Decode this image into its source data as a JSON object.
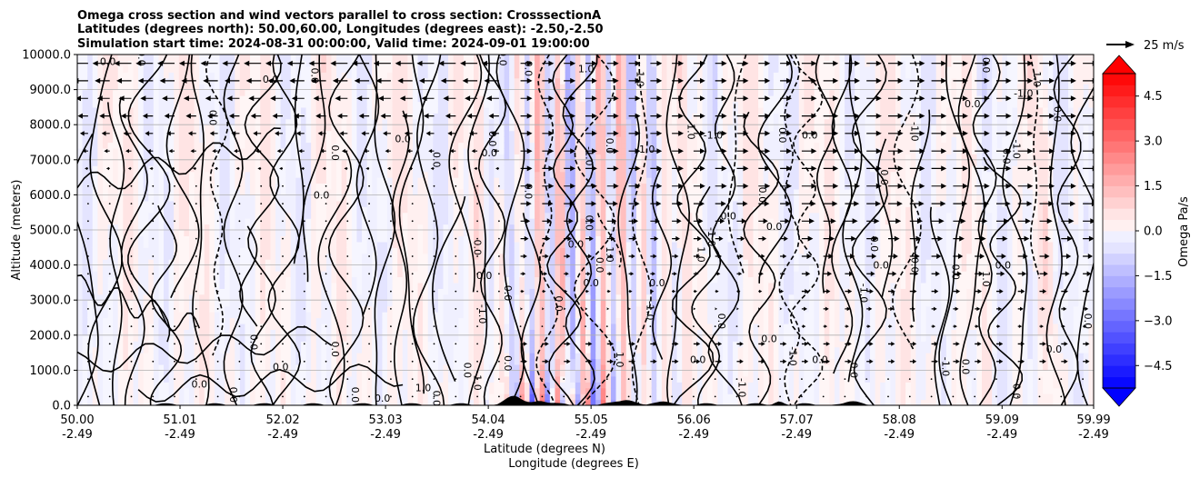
{
  "chart_data": {
    "type": "contour",
    "title_lines": [
      "Omega cross section and wind vectors parallel to cross section: CrosssectionA",
      "Latitudes (degrees north): 50.00,60.00, Longitudes (degrees east): -2.50,-2.50",
      "Simulation start time: 2024-08-31 00:00:00, Valid time: 2024-09-01 19:00:00"
    ],
    "ylabel": "Altitude (meters)",
    "xlabel_lat": "Latitude (degrees N)",
    "xlabel_lon": "Longitude (degrees E)",
    "ylim": [
      0,
      10000
    ],
    "xlim": [
      50.0,
      59.99
    ],
    "y_ticks": [
      "0.0",
      "1000.0",
      "2000.0",
      "3000.0",
      "4000.0",
      "5000.0",
      "6000.0",
      "7000.0",
      "8000.0",
      "9000.0",
      "10000.0"
    ],
    "x_ticks": [
      {
        "lat": "50.00",
        "lon": "-2.49"
      },
      {
        "lat": "51.01",
        "lon": "-2.49"
      },
      {
        "lat": "52.02",
        "lon": "-2.49"
      },
      {
        "lat": "53.03",
        "lon": "-2.49"
      },
      {
        "lat": "54.04",
        "lon": "-2.49"
      },
      {
        "lat": "55.05",
        "lon": "-2.49"
      },
      {
        "lat": "56.06",
        "lon": "-2.49"
      },
      {
        "lat": "57.07",
        "lon": "-2.49"
      },
      {
        "lat": "58.08",
        "lon": "-2.49"
      },
      {
        "lat": "59.09",
        "lon": "-2.49"
      },
      {
        "lat": "59.99",
        "lon": "-2.49"
      }
    ],
    "colorbar": {
      "label": "Omega Pa/s",
      "range": [
        -5.25,
        5.25
      ],
      "ticks": [
        "−4.5",
        "−3.0",
        "−1.5",
        "0.0",
        "1.5",
        "3.0",
        "4.5"
      ],
      "tick_values": [
        -4.5,
        -3.0,
        -1.5,
        0.0,
        1.5,
        3.0,
        4.5
      ],
      "colormap": "bwr",
      "extend": "both"
    },
    "quiver_key": {
      "label": "25 m/s",
      "speed": 25
    },
    "contour_levels": [
      -1.0,
      0.0,
      1.0
    ],
    "contour_labels": [
      {
        "text": "0.0",
        "lat": 50.3,
        "alt": 9700
      },
      {
        "text": "0.0",
        "lat": 50.6,
        "alt": 9900
      },
      {
        "text": "0.0",
        "lat": 51.3,
        "alt": 8200
      },
      {
        "text": "0.0",
        "lat": 51.9,
        "alt": 9200
      },
      {
        "text": "0.0",
        "lat": 52.3,
        "alt": 9400
      },
      {
        "text": "0.0",
        "lat": 52.5,
        "alt": 7200
      },
      {
        "text": "0.0",
        "lat": 53.2,
        "alt": 7500
      },
      {
        "text": "0.0",
        "lat": 53.5,
        "alt": 7000
      },
      {
        "text": "0.0",
        "lat": 54.05,
        "alt": 7600
      },
      {
        "text": "0.0",
        "lat": 54.05,
        "alt": 7100
      },
      {
        "text": "0.0",
        "lat": 54.15,
        "alt": 9900
      },
      {
        "text": "0.0",
        "lat": 54.4,
        "alt": 9600
      },
      {
        "text": "1.0",
        "lat": 55.0,
        "alt": 9500
      },
      {
        "text": "1.0",
        "lat": 55.5,
        "alt": 9300
      },
      {
        "text": "1.0",
        "lat": 56.0,
        "alt": 7800
      },
      {
        "text": "-1.0",
        "lat": 56.25,
        "alt": 7600
      },
      {
        "text": "0.0",
        "lat": 55.2,
        "alt": 7400
      },
      {
        "text": "-1.0",
        "lat": 55.0,
        "alt": 7100
      },
      {
        "text": "1.0",
        "lat": 55.6,
        "alt": 7200
      },
      {
        "text": "0.0",
        "lat": 56.9,
        "alt": 7700
      },
      {
        "text": "-1.0",
        "lat": 58.2,
        "alt": 7800
      },
      {
        "text": "0.0",
        "lat": 57.2,
        "alt": 7600
      },
      {
        "text": "0.0",
        "lat": 57.9,
        "alt": 6500
      },
      {
        "text": "0.0",
        "lat": 58.9,
        "alt": 9700
      },
      {
        "text": "-1.0",
        "lat": 59.3,
        "alt": 8800
      },
      {
        "text": "0.0",
        "lat": 59.6,
        "alt": 8300
      },
      {
        "text": "1.0",
        "lat": 59.4,
        "alt": 9300
      },
      {
        "text": "0.0",
        "lat": 58.8,
        "alt": 8500
      },
      {
        "text": "0.0",
        "lat": 59.1,
        "alt": 7100
      },
      {
        "text": "-1.0",
        "lat": 59.2,
        "alt": 7300
      },
      {
        "text": "0.0",
        "lat": 52.4,
        "alt": 5900
      },
      {
        "text": "0.0",
        "lat": 54.4,
        "alt": 6100
      },
      {
        "text": "0.0",
        "lat": 55.0,
        "alt": 5200
      },
      {
        "text": "0.0",
        "lat": 56.4,
        "alt": 5300
      },
      {
        "text": "0.0",
        "lat": 56.7,
        "alt": 6000
      },
      {
        "text": "-1.0",
        "lat": 56.2,
        "alt": 4800
      },
      {
        "text": "0.0",
        "lat": 56.85,
        "alt": 5000
      },
      {
        "text": "1.0",
        "lat": 56.1,
        "alt": 4300
      },
      {
        "text": "0.0",
        "lat": 53.9,
        "alt": 4500
      },
      {
        "text": "0.0",
        "lat": 54.0,
        "alt": 3600
      },
      {
        "text": "0.0",
        "lat": 54.2,
        "alt": 3200
      },
      {
        "text": "-1.0",
        "lat": 53.95,
        "alt": 2600
      },
      {
        "text": "0.0",
        "lat": 54.9,
        "alt": 4500
      },
      {
        "text": "0.0",
        "lat": 55.1,
        "alt": 4000
      },
      {
        "text": "1.0",
        "lat": 55.2,
        "alt": 4300
      },
      {
        "text": "0.0",
        "lat": 55.05,
        "alt": 3400
      },
      {
        "text": "0.0",
        "lat": 54.7,
        "alt": 2900
      },
      {
        "text": "-1.0",
        "lat": 55.6,
        "alt": 2700
      },
      {
        "text": "0.0",
        "lat": 55.7,
        "alt": 3400
      },
      {
        "text": "0.0",
        "lat": 57.8,
        "alt": 4600
      },
      {
        "text": "-1.0",
        "lat": 57.7,
        "alt": 3200
      },
      {
        "text": "0.0",
        "lat": 57.9,
        "alt": 3900
      },
      {
        "text": "0.0",
        "lat": 58.2,
        "alt": 4000
      },
      {
        "text": "0.0",
        "lat": 58.6,
        "alt": 3800
      },
      {
        "text": "0.0",
        "lat": 59.1,
        "alt": 3900
      },
      {
        "text": "1.0",
        "lat": 58.9,
        "alt": 3600
      },
      {
        "text": "0.0",
        "lat": 56.3,
        "alt": 2400
      },
      {
        "text": "0.0",
        "lat": 56.8,
        "alt": 1800
      },
      {
        "text": "0.0",
        "lat": 51.7,
        "alt": 1800
      },
      {
        "text": "0.0",
        "lat": 52.5,
        "alt": 1600
      },
      {
        "text": "0.0",
        "lat": 52.0,
        "alt": 1000
      },
      {
        "text": "0.0",
        "lat": 53.8,
        "alt": 1000
      },
      {
        "text": "-1.0",
        "lat": 53.9,
        "alt": 700
      },
      {
        "text": "1.0",
        "lat": 53.4,
        "alt": 400
      },
      {
        "text": "0.0",
        "lat": 54.2,
        "alt": 1200
      },
      {
        "text": "-1.0",
        "lat": 56.5,
        "alt": 500
      },
      {
        "text": "0.0",
        "lat": 56.1,
        "alt": 1200
      },
      {
        "text": "-1.0",
        "lat": 58.5,
        "alt": 1100
      },
      {
        "text": "-1.0",
        "lat": 57.0,
        "alt": 1400
      },
      {
        "text": "0.0",
        "lat": 57.3,
        "alt": 1200
      },
      {
        "text": "0.0",
        "lat": 58.7,
        "alt": 1100
      },
      {
        "text": "0.0",
        "lat": 59.2,
        "alt": 400
      },
      {
        "text": "0.0",
        "lat": 59.6,
        "alt": 1500
      },
      {
        "text": "0.0",
        "lat": 59.9,
        "alt": 2400
      },
      {
        "text": "1.0",
        "lat": 55.3,
        "alt": 1300
      },
      {
        "text": "0.0",
        "lat": 51.2,
        "alt": 500
      },
      {
        "text": "0.0",
        "lat": 51.5,
        "alt": 300
      },
      {
        "text": "0.0",
        "lat": 52.7,
        "alt": 300
      },
      {
        "text": "0.0",
        "lat": 53.0,
        "alt": 100
      },
      {
        "text": "0.0",
        "lat": 53.5,
        "alt": 200
      },
      {
        "text": "0.0",
        "lat": 57.6,
        "alt": 1000
      }
    ]
  }
}
